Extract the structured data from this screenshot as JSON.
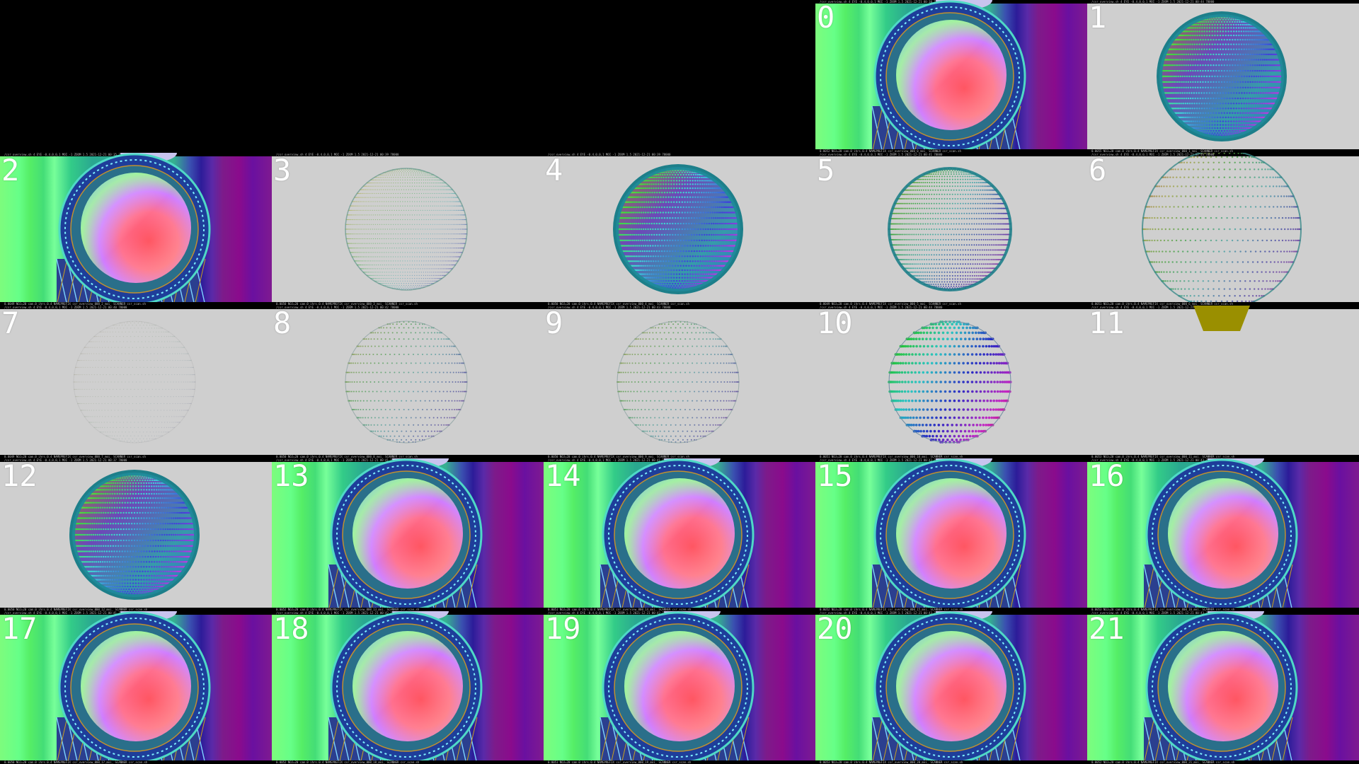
{
  "grid": {
    "columns": 5,
    "empty_leading_cells": 3,
    "tiles": [
      {
        "label": "0",
        "style": "scene",
        "header": "/csr_overview.sh   4 EYE -0.4,0,0,1 MOI -1 ZOOM 1.5   2021-12-21 00:38  78000",
        "footer": "0.0052   NOJ=20 cam.0 ihrs.0.4 NAMEPREFIX csr_overview_000_0_moi_ SCANNER csr_scan.sh"
      },
      {
        "label": "1",
        "style": "dense",
        "header": "/csr_overview.sh   4 EYE -0.4,0,0,1 MOI -1 ZOOM 1.5   2021-12-21 00:44  78000",
        "footer": "0.0055   NOJ=20 cam.0 ihrs.0.4 NAMEPREFIX csr_overview_000_1_moi_ SCANNER csr_scan.sh"
      },
      {
        "label": "2",
        "style": "scene",
        "header": "/csr_overview.sh   4 EYE -0.4,0,0,1 MOI -1 ZOOM 1.5   2021-12-21 00:35  78000",
        "footer": "0.0049   NOJ=20 cam.0 ihrs.0.4 NAMEPREFIX csr_overview_000_2_moi_ SCANNER csr_scan.sh"
      },
      {
        "label": "3",
        "style": "fine",
        "header": "/csr_overview.sh   4 EYE -0.4,0,0,1 MOI -1 ZOOM 1.5   2021-12-21 00:39  78000",
        "footer": "0.0050   NOJ=20 cam.0 ihrs.0.4 NAMEPREFIX csr_overview_000_3_moi_ SCANNER csr_scan.sh"
      },
      {
        "label": "4",
        "style": "dense",
        "header": "/csr_overview.sh   4 EYE -0.4,0,0,1 MOI -1 ZOOM 1.5   2021-12-21 00:39  78000",
        "footer": "0.0050   NOJ=20 cam.0 ihrs.0.4 NAMEPREFIX csr_overview_000_4_moi_ SCANNER csr_scan.sh"
      },
      {
        "label": "5",
        "style": "medium",
        "header": "/csr_overview.sh   4 EYE -0.4,0,0,1 MOI -1 ZOOM 1.5   2021-12-21 00:41  78000",
        "footer": "0.0049   NOJ=20 cam.0 ihrs.0.4 NAMEPREFIX csr_overview_000_5_moi_ SCANNER csr_scan.sh"
      },
      {
        "label": "6",
        "style": "sparse",
        "header": "/csr_overview.sh   4 EYE -0.4,0,0,1 MOI -1 ZOOM 1.5   2021-12-21 00:44  78000",
        "footer": "0.0051   NOJ=20 cam.0 ihrs.0.4 NAMEPREFIX csr_overview_000_6_moi_ SCANNER csr_scan.sh"
      },
      {
        "label": "7",
        "style": "faint",
        "header": "/csr_overview.sh   4 EYE -0.4,0,0,1 MOI -1 ZOOM 1.5   2021-12-21 00:40  78000",
        "footer": "0.0049   NOJ=20 cam.0 ihrs.0.4 NAMEPREFIX csr_overview_000_7_moi_ SCANNER csr_scan.sh"
      },
      {
        "label": "8",
        "style": "sparse2",
        "header": "/csr_overview.sh   4 EYE -0.4,0,0,1 MOI -1 ZOOM 1.5   2021-12-21 00:42  78000",
        "footer": "0.0050   NOJ=20 cam.0 ihrs.0.4 NAMEPREFIX csr_overview_000_8_moi_ SCANNER csr_scan.sh"
      },
      {
        "label": "9",
        "style": "sparse2",
        "header": "/csr_overview.sh   4 EYE -0.4,0,0,1 MOI -1 ZOOM 1.5   2021-12-21 00:43  78000",
        "footer": "0.0050   NOJ=20 cam.0 ihrs.0.4 NAMEPREFIX csr_overview_000_9_moi_ SCANNER csr_scan.sh"
      },
      {
        "label": "10",
        "style": "coarse",
        "header": "/csr_overview.sh   4 EYE -0.4,0,0,1 MOI -1 ZOOM 1.5   2021-12-21 00:44  78000",
        "footer": "0.0051   NOJ=20 cam.0 ihrs.0.4 NAMEPREFIX csr_overview_000_10_moi_ SCANNER csr_scan.sh"
      },
      {
        "label": "11",
        "style": "empty",
        "header": "/csr_overview.sh   4 EYE -0.4,0,0,1 MOI -1 ZOOM 1.5   2021-12-21 00:45  78000",
        "footer": "0.0053   NOJ=20 cam.0 ihrs.0.4 NAMEPREFIX csr_overview_000_11_moi_ SCANNER csr_scan.sh"
      },
      {
        "label": "12",
        "style": "dense",
        "header": "/csr_overview.sh   4 EYE -0.4,0,0,1 MOI -1 ZOOM 1.5   2021-12-21 00:37  78000",
        "footer": "0.0050   NOJ=20 cam.0 ihrs.0.4 NAMEPREFIX csr_overview_000_12_moi_ SCANNER csr_scan.sh"
      },
      {
        "label": "13",
        "style": "scene",
        "header": "/csr_overview.sh   4 EYE -0.4,0,0,1 MOI -1 ZOOM 1.5   2021-12-21 00:41  78000",
        "footer": "0.0052   NOJ=20 cam.0 ihrs.0.4 NAMEPREFIX csr_overview_000_13_moi_ SCANNER csr_scan.sh"
      },
      {
        "label": "14",
        "style": "scene",
        "header": "/csr_overview.sh   4 EYE -0.4,0,0,1 MOI -1 ZOOM 1.5   2021-12-21 00:41  78000",
        "footer": "0.0051   NOJ=20 cam.0 ihrs.0.4 NAMEPREFIX csr_overview_000_14_moi_ SCANNER csr_scan.sh"
      },
      {
        "label": "15",
        "style": "scene",
        "header": "/csr_overview.sh   4 EYE -0.4,0,0,1 MOI -1 ZOOM 1.5   2021-12-21 00:42  78000",
        "footer": "0.0052   NOJ=20 cam.0 ihrs.0.4 NAMEPREFIX csr_overview_000_15_moi_ SCANNER csr_scan.sh"
      },
      {
        "label": "16",
        "style": "scene",
        "header": "/csr_overview.sh   4 EYE -0.4,0,0,1 MOI -1 ZOOM 1.5   2021-12-21 00:43  78000",
        "footer": "0.0053   NOJ=20 cam.0 ihrs.0.4 NAMEPREFIX csr_overview_000_16_moi_ SCANNER csr_scan.sh"
      },
      {
        "label": "17",
        "style": "scene",
        "header": "/csr_overview.sh   4 EYE -0.4,0,0,1 MOI -1 ZOOM 1.5   2021-12-21 00:41  78000",
        "footer": "0.0050   NOJ=20 cam.0 ihrs.0.4 NAMEPREFIX csr_overview_000_17_moi_ SCANNER csr_scan.sh"
      },
      {
        "label": "18",
        "style": "scene",
        "header": "/csr_overview.sh   4 EYE -0.4,0,0,1 MOI -1 ZOOM 1.5   2021-12-21 00:42  78000",
        "footer": "0.0052   NOJ=20 cam.0 ihrs.0.4 NAMEPREFIX csr_overview_000_18_moi_ SCANNER csr_scan.sh"
      },
      {
        "label": "19",
        "style": "scene",
        "header": "/csr_overview.sh   4 EYE -0.4,0,0,1 MOI -1 ZOOM 1.5   2021-12-21 00:42  78000",
        "footer": "0.0051   NOJ=20 cam.0 ihrs.0.4 NAMEPREFIX csr_overview_000_19_moi_ SCANNER csr_scan.sh"
      },
      {
        "label": "20",
        "style": "scene",
        "header": "/csr_overview.sh   4 EYE -0.4,0,0,1 MOI -1 ZOOM 1.5   2021-12-21 00:43  78000",
        "footer": "0.0053   NOJ=20 cam.0 ihrs.0.4 NAMEPREFIX csr_overview_000_20_moi_ SCANNER csr_scan.sh"
      },
      {
        "label": "21",
        "style": "scene",
        "header": "/csr_overview.sh   4 EYE -0.4,0,0,1 MOI -1 ZOOM 1.5   2021-12-21 00:43  78000",
        "footer": "0.0052   NOJ=20 cam.0 ihrs.0.4 NAMEPREFIX csr_overview_000_21_moi_ SCANNER csr_scan.sh"
      }
    ]
  },
  "colors": {
    "background": "#000000",
    "tile_gray": "#cfcfcf",
    "label": "#ffffff",
    "strip_text": "#bdbdbd",
    "marker_olive": "#9a8f00"
  }
}
